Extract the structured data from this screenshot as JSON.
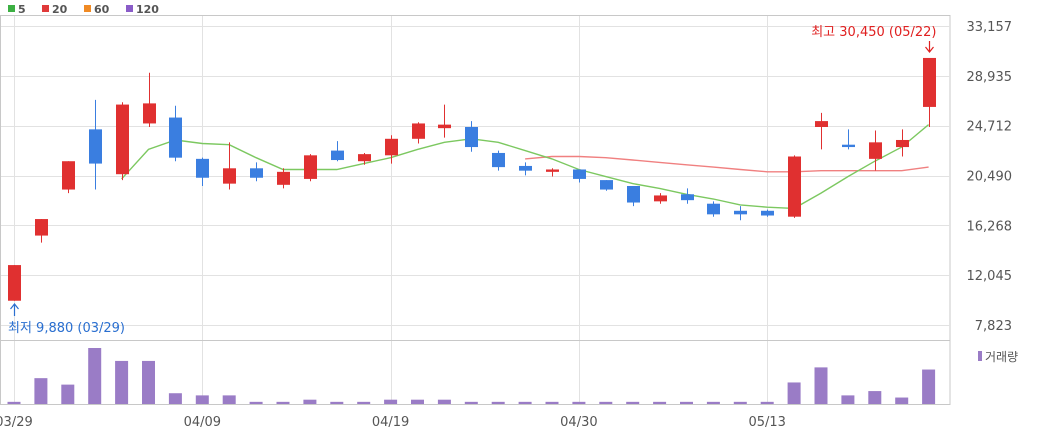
{
  "colors": {
    "up": "#e03030",
    "down": "#3a7ee0",
    "ma5": "#7cc860",
    "ma20": "#f08080",
    "volume": "#9a7cc6",
    "grid": "#e2e2e2",
    "axis_text": "#555555",
    "high_label": "#e02020",
    "low_label": "#2a6fd0"
  },
  "legend": [
    {
      "label": "5",
      "color": "#3cb043"
    },
    {
      "label": "20",
      "color": "#e03a3a"
    },
    {
      "label": "60",
      "color": "#f08a24"
    },
    {
      "label": "120",
      "color": "#8a5cc8"
    }
  ],
  "high_label": "최고 30,450 (05/22)",
  "low_label": "최저 9,880 (03/29)",
  "volume_legend": "거래량",
  "chart_data": {
    "type": "candlestick",
    "y_ticks": [
      "33,157",
      "28,935",
      "24,712",
      "20,490",
      "16,268",
      "12,045",
      "7,823"
    ],
    "ylim": [
      7823,
      33157
    ],
    "x_ticks": [
      {
        "index": 0,
        "label": "03/29"
      },
      {
        "index": 7,
        "label": "04/09"
      },
      {
        "index": 14,
        "label": "04/19"
      },
      {
        "index": 21,
        "label": "04/30"
      },
      {
        "index": 28,
        "label": "05/13"
      }
    ],
    "candles": [
      {
        "o": 9880,
        "h": 12900,
        "l": 9880,
        "c": 12900
      },
      {
        "o": 15400,
        "h": 16800,
        "l": 14800,
        "c": 16800
      },
      {
        "o": 19300,
        "h": 21700,
        "l": 19000,
        "c": 21700
      },
      {
        "o": 24400,
        "h": 26900,
        "l": 19300,
        "c": 21500
      },
      {
        "o": 20600,
        "h": 26700,
        "l": 20100,
        "c": 26500
      },
      {
        "o": 24900,
        "h": 29200,
        "l": 24600,
        "c": 26600
      },
      {
        "o": 25400,
        "h": 26400,
        "l": 21700,
        "c": 22000
      },
      {
        "o": 21900,
        "h": 22000,
        "l": 19600,
        "c": 20300
      },
      {
        "o": 19800,
        "h": 23300,
        "l": 19300,
        "c": 21100
      },
      {
        "o": 21100,
        "h": 21600,
        "l": 20000,
        "c": 20300
      },
      {
        "o": 19700,
        "h": 21100,
        "l": 19400,
        "c": 20800
      },
      {
        "o": 20200,
        "h": 22300,
        "l": 20000,
        "c": 22200
      },
      {
        "o": 22600,
        "h": 23400,
        "l": 21700,
        "c": 21800
      },
      {
        "o": 21700,
        "h": 22400,
        "l": 21400,
        "c": 22300
      },
      {
        "o": 22200,
        "h": 23900,
        "l": 21500,
        "c": 23600
      },
      {
        "o": 23600,
        "h": 25000,
        "l": 23200,
        "c": 24900
      },
      {
        "o": 24500,
        "h": 26500,
        "l": 23700,
        "c": 24800
      },
      {
        "o": 24600,
        "h": 25100,
        "l": 22500,
        "c": 22900
      },
      {
        "o": 22400,
        "h": 22600,
        "l": 20900,
        "c": 21200
      },
      {
        "o": 21300,
        "h": 21600,
        "l": 20500,
        "c": 20900
      },
      {
        "o": 20800,
        "h": 21100,
        "l": 20400,
        "c": 21000
      },
      {
        "o": 21000,
        "h": 21000,
        "l": 19900,
        "c": 20200
      },
      {
        "o": 20100,
        "h": 20100,
        "l": 19200,
        "c": 19300
      },
      {
        "o": 19600,
        "h": 19600,
        "l": 17900,
        "c": 18200
      },
      {
        "o": 18300,
        "h": 19000,
        "l": 18100,
        "c": 18800
      },
      {
        "o": 18900,
        "h": 19400,
        "l": 18100,
        "c": 18400
      },
      {
        "o": 18100,
        "h": 18300,
        "l": 17000,
        "c": 17200
      },
      {
        "o": 17500,
        "h": 17900,
        "l": 16700,
        "c": 17200
      },
      {
        "o": 17500,
        "h": 17600,
        "l": 17000,
        "c": 17100
      },
      {
        "o": 17000,
        "h": 22200,
        "l": 16900,
        "c": 22100
      },
      {
        "o": 24600,
        "h": 25800,
        "l": 22700,
        "c": 25100
      },
      {
        "o": 23100,
        "h": 24400,
        "l": 22700,
        "c": 22900
      },
      {
        "o": 21900,
        "h": 24300,
        "l": 20900,
        "c": 23300
      },
      {
        "o": 22900,
        "h": 24400,
        "l": 22100,
        "c": 23500
      },
      {
        "o": 26300,
        "h": 30450,
        "l": 24600,
        "c": 30450
      }
    ],
    "ma5": [
      null,
      null,
      null,
      null,
      20200,
      22700,
      23500,
      23200,
      23100,
      22000,
      21000,
      21000,
      21000,
      21500,
      22000,
      22700,
      23300,
      23600,
      23300,
      22600,
      21900,
      21000,
      20400,
      19800,
      19400,
      18900,
      18500,
      18000,
      17800,
      17700,
      19000,
      20400,
      21700,
      22900,
      24800
    ],
    "ma20": [
      null,
      null,
      null,
      null,
      null,
      null,
      null,
      null,
      null,
      null,
      null,
      null,
      null,
      null,
      null,
      null,
      null,
      null,
      null,
      21900,
      22100,
      22100,
      22000,
      21800,
      21600,
      21400,
      21200,
      21000,
      20800,
      20800,
      20900,
      20900,
      20900,
      20900,
      21200
    ],
    "volume": [
      1,
      12,
      9,
      26,
      20,
      20,
      5,
      4,
      4,
      1,
      1,
      2,
      1,
      1,
      2,
      2,
      2,
      1,
      1,
      1,
      1,
      1,
      1,
      1,
      1,
      1,
      1,
      1,
      1,
      10,
      17,
      4,
      6,
      3,
      16
    ],
    "volume_max": 26
  }
}
